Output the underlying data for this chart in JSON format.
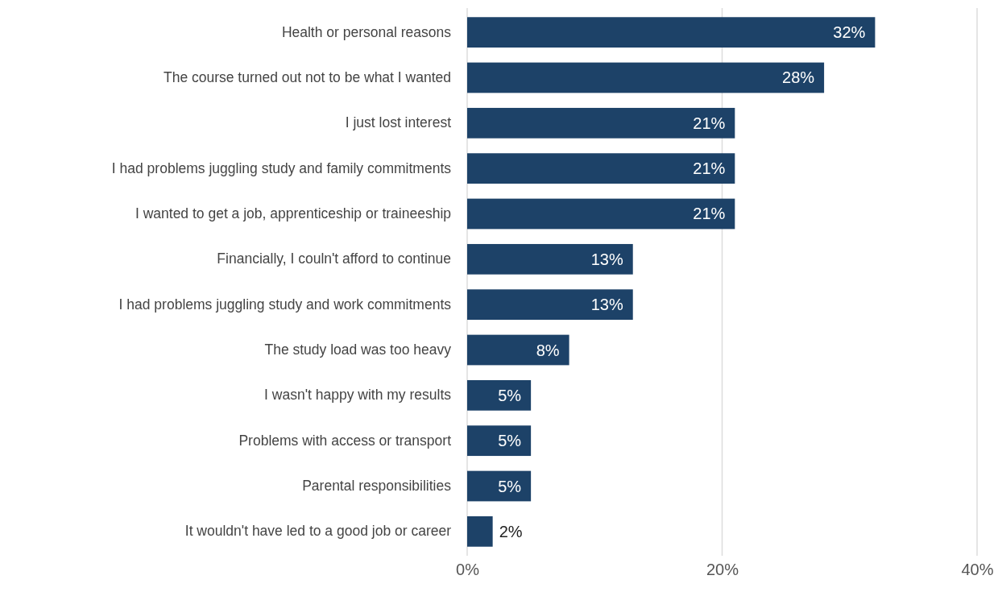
{
  "chart_data": {
    "type": "bar",
    "orientation": "horizontal",
    "categories": [
      "Health or personal reasons",
      "The course turned out not to be what I wanted",
      "I just lost interest",
      "I had problems juggling study and family commitments",
      "I wanted to get a job, apprenticeship or traineeship",
      "Financially, I couln't afford to continue",
      "I had problems juggling study and work commitments",
      "The study load was too heavy",
      "I wasn't happy with my results",
      "Problems with access or transport",
      "Parental responsibilities",
      "It wouldn't have led to a good job or career"
    ],
    "values": [
      32,
      28,
      21,
      21,
      21,
      13,
      13,
      8,
      5,
      5,
      5,
      2
    ],
    "value_labels": [
      "32%",
      "28%",
      "21%",
      "21%",
      "21%",
      "13%",
      "13%",
      "8%",
      "5%",
      "5%",
      "5%",
      "2%"
    ],
    "color": "#1d4268",
    "xlim": [
      0,
      40
    ],
    "xticks": [
      {
        "value": 0,
        "label": "0%"
      },
      {
        "value": 20,
        "label": "20%"
      },
      {
        "value": 40,
        "label": "40%"
      }
    ],
    "grid": "x"
  }
}
